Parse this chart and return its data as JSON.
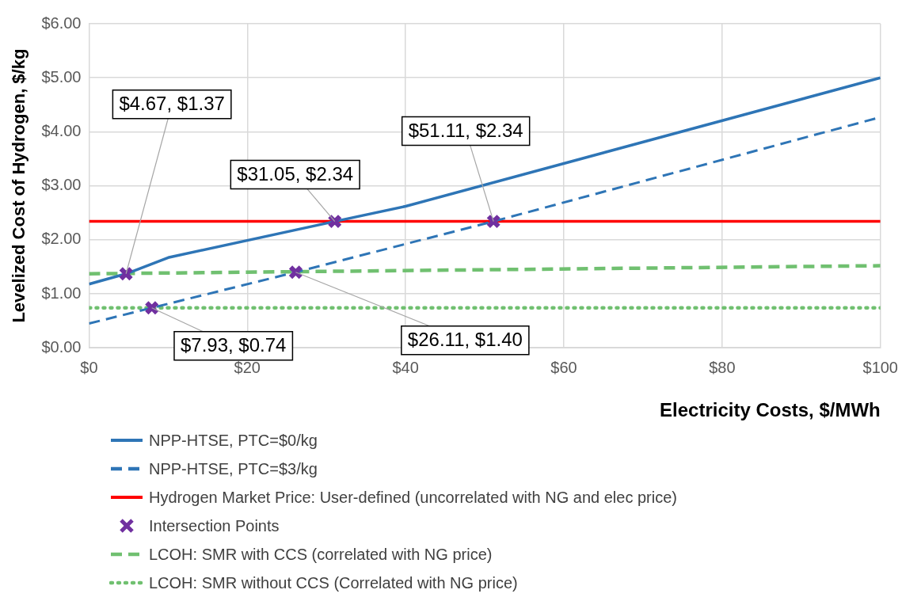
{
  "chart_data": {
    "type": "line",
    "xlabel": "Electricity Costs, $/MWh",
    "ylabel": "Levelized Cost of Hydrogen, $/kg",
    "xlim": [
      0,
      100
    ],
    "xticks": [
      {
        "value": 0,
        "label": "$0"
      },
      {
        "value": 20,
        "label": "$20"
      },
      {
        "value": 40,
        "label": "$40"
      },
      {
        "value": 60,
        "label": "$60"
      },
      {
        "value": 80,
        "label": "$80"
      },
      {
        "value": 100,
        "label": "$100"
      }
    ],
    "ylim": [
      0,
      6
    ],
    "yticks": [
      {
        "value": 0,
        "label": "$0.00"
      },
      {
        "value": 1,
        "label": "$1.00"
      },
      {
        "value": 2,
        "label": "$2.00"
      },
      {
        "value": 3,
        "label": "$3.00"
      },
      {
        "value": 4,
        "label": "$4.00"
      },
      {
        "value": 5,
        "label": "$5.00"
      },
      {
        "value": 6,
        "label": "$6.00"
      }
    ],
    "grid": true,
    "legend": "bottom",
    "marker": "none",
    "series": [
      {
        "name": "NPP-HTSE, PTC=$0/kg",
        "color": "#2e75b6",
        "line_style": "solid",
        "x": [
          0,
          4.67,
          10,
          31.05,
          40,
          100
        ],
        "values": [
          1.18,
          1.37,
          1.67,
          2.34,
          2.62,
          5.0
        ]
      },
      {
        "name": "NPP-HTSE, PTC=$3/kg",
        "color": "#2e75b6",
        "line_style": "dashed",
        "x": [
          0,
          7.93,
          26.11,
          51.11,
          100
        ],
        "values": [
          0.45,
          0.74,
          1.4,
          2.34,
          4.27
        ]
      },
      {
        "name": "Hydrogen Market Price: User-defined (uncorrelated with NG and elec price)",
        "color": "#ff0000",
        "line_style": "solid",
        "x": [
          0,
          100
        ],
        "values": [
          2.34,
          2.34
        ]
      },
      {
        "name": "Intersection Points",
        "type": "scatter",
        "color": "#7030a0",
        "marker": "cross",
        "x": [
          4.67,
          31.05,
          51.11,
          7.93,
          26.11
        ],
        "values": [
          1.37,
          2.34,
          2.34,
          0.74,
          1.4
        ]
      },
      {
        "name": "LCOH: SMR with CCS (correlated with NG price)",
        "color": "#70c070",
        "line_style": "dashed",
        "x": [
          0,
          100
        ],
        "values": [
          1.37,
          1.52
        ]
      },
      {
        "name": "LCOH: SMR without CCS (Correlated with NG price)",
        "color": "#70c070",
        "line_style": "dotted",
        "x": [
          0,
          100
        ],
        "values": [
          0.74,
          0.74
        ]
      }
    ],
    "annotations": [
      {
        "text": "$4.67, $1.37",
        "x": 4.67,
        "y": 1.37
      },
      {
        "text": "$31.05, $2.34",
        "x": 31.05,
        "y": 2.34
      },
      {
        "text": "$51.11, $2.34",
        "x": 51.11,
        "y": 2.34
      },
      {
        "text": "$7.93, $0.74",
        "x": 7.93,
        "y": 0.74
      },
      {
        "text": "$26.11, $1.40",
        "x": 26.11,
        "y": 1.4
      }
    ]
  }
}
